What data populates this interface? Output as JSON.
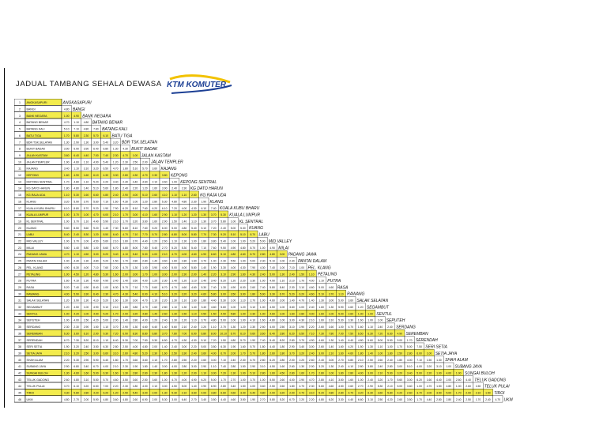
{
  "title": "JADUAL TAMBANG SEHALA DEWASA",
  "logo_text": "KTM KOMUTER",
  "colors": {
    "highlight": "#f3ec4d",
    "plain": "#ffffff",
    "logo_blue": "#1c3f94",
    "logo_yellow": "#f2c200",
    "border": "#000000"
  },
  "stations": [
    {
      "no": "1",
      "name": "ANGKASAPURI",
      "hl": true
    },
    {
      "no": "2",
      "name": "BANGI",
      "hl": false
    },
    {
      "no": "3",
      "name": "BANK NEGARA",
      "hl": true
    },
    {
      "no": "4",
      "name": "BATANG BENAR",
      "hl": false
    },
    {
      "no": "5",
      "name": "BATANG KALI",
      "hl": false
    },
    {
      "no": "6",
      "name": "BATU TIGA",
      "hl": true
    },
    {
      "no": "7",
      "name": "BDR TSK.SELATAN",
      "hl": false
    },
    {
      "no": "8",
      "name": "BUKIT BADAK",
      "hl": false
    },
    {
      "no": "9",
      "name": "JALAN KASTAM",
      "hl": true
    },
    {
      "no": "10",
      "name": "JALAN TEMPLER",
      "hl": false
    },
    {
      "no": "11",
      "name": "KAJANG",
      "hl": false
    },
    {
      "no": "12",
      "name": "KEPONG",
      "hl": true
    },
    {
      "no": "13",
      "name": "KEPONG SENTRAL",
      "hl": false
    },
    {
      "no": "14",
      "name": "KG DATO HARUN",
      "hl": false
    },
    {
      "no": "15",
      "name": "KG.RAJA UDA",
      "hl": true
    },
    {
      "no": "16",
      "name": "KLANG",
      "hl": false
    },
    {
      "no": "17",
      "name": "KUALA KUBU BHARU",
      "hl": false
    },
    {
      "no": "18",
      "name": "KUALA LUMPUR",
      "hl": true
    },
    {
      "no": "19",
      "name": "KL SENTRAL",
      "hl": false
    },
    {
      "no": "20",
      "name": "KUANG",
      "hl": false
    },
    {
      "no": "21",
      "name": "LABU",
      "hl": true
    },
    {
      "no": "22",
      "name": "MID VALLEY",
      "hl": false
    },
    {
      "no": "23",
      "name": "MILAI",
      "hl": false
    },
    {
      "no": "24",
      "name": "PADANG JAWA",
      "hl": true
    },
    {
      "no": "25",
      "name": "PANTAI DALAM",
      "hl": false
    },
    {
      "no": "26",
      "name": "PEL. KLANG",
      "hl": false
    },
    {
      "no": "27",
      "name": "PETALING",
      "hl": true
    },
    {
      "no": "28",
      "name": "PUTRA",
      "hl": false
    },
    {
      "no": "29",
      "name": "RASA",
      "hl": false
    },
    {
      "no": "30",
      "name": "RAWANG",
      "hl": true
    },
    {
      "no": "31",
      "name": "SALAK SELATAN",
      "hl": false
    },
    {
      "no": "32",
      "name": "SEGAMBUT",
      "hl": false
    },
    {
      "no": "33",
      "name": "SENTUL",
      "hl": true
    },
    {
      "no": "34",
      "name": "SEPUTEH",
      "hl": false
    },
    {
      "no": "35",
      "name": "SERDANG",
      "hl": false
    },
    {
      "no": "36",
      "name": "SEREMBAN",
      "hl": true
    },
    {
      "no": "37",
      "name": "SERENDAH",
      "hl": false
    },
    {
      "no": "38",
      "name": "SERI SETIA",
      "hl": false
    },
    {
      "no": "39",
      "name": "SETIA JAYA",
      "hl": true
    },
    {
      "no": "40",
      "name": "SHAH ALAM",
      "hl": false
    },
    {
      "no": "41",
      "name": "SUBANG JAYA",
      "hl": false
    },
    {
      "no": "42",
      "name": "SUNGAI BULOH",
      "hl": true
    },
    {
      "no": "43",
      "name": "TELUK GADONG",
      "hl": false
    },
    {
      "no": "44",
      "name": "TELUK PULAI",
      "hl": false
    },
    {
      "no": "45",
      "name": "TIROI",
      "hl": true
    },
    {
      "no": "46",
      "name": "UKM",
      "hl": false
    }
  ],
  "fare_rows": [
    [],
    [
      "4.80"
    ],
    [
      "1.00",
      "4.90"
    ],
    [
      "4.70",
      "1.10",
      "4.80"
    ],
    [
      "5.10",
      "7.10",
      "4.80",
      "7.80"
    ],
    [
      "1.70",
      "5.80",
      "2.30",
      "5.70",
      "6.10"
    ],
    [
      "1.30",
      "2.90",
      "1.30",
      "3.90",
      "5.40",
      "3.20"
    ],
    [
      "3.90",
      "5.90",
      "3.90",
      "6.40",
      "6.80",
      "1.30",
      "4.30"
    ],
    [
      "3.60",
      "6.40",
      "4.40",
      "7.00",
      "7.40",
      "2.30",
      "4.70",
      "1.00"
    ],
    [
      "1.90",
      "4.60",
      "1.10",
      "4.90",
      "5.40",
      "1.20",
      "2.30",
      "2.50",
      "2.00"
    ],
    [
      "3.40",
      "1.10",
      "3.10",
      "3.20",
      "6.50",
      "4.70",
      "1.80",
      "5.10",
      "5.70",
      "3.60"
    ],
    [
      "1.60",
      "4.90",
      "1.60",
      "6.10",
      "4.30",
      "3.30",
      "2.80",
      "4.30",
      "4.70",
      "2.30",
      "3.80"
    ],
    [
      "1.70",
      "4.80",
      "1.10",
      "5.20",
      "4.20",
      "3.40",
      "2.40",
      "4.40",
      "4.60",
      "2.10",
      "3.60",
      "1.00"
    ],
    [
      "1.80",
      "4.80",
      "1.40",
      "5.10",
      "5.60",
      "1.80",
      "2.40",
      "2.20",
      "1.20",
      "1.60",
      "3.90",
      "2.40",
      "2.30"
    ],
    [
      "1.10",
      "5.30",
      "1.60",
      "6.60",
      "4.80",
      "2.40",
      "2.90",
      "4.00",
      "5.10",
      "2.60",
      "4.10",
      "1.10",
      "1.10",
      "2.60"
    ],
    [
      "3.20",
      "5.90",
      "3.70",
      "5.60",
      "7.10",
      "1.60",
      "4.30",
      "1.00",
      "1.20",
      "2.80",
      "5.30",
      "4.80",
      "4.80",
      "2.30",
      "1.90"
    ],
    [
      "6.10",
      "8.80",
      "5.70",
      "9.20",
      "1.90",
      "7.90",
      "6.20",
      "8.10",
      "7.60",
      "6.20",
      "6.10",
      "7.20",
      "4.00",
      "4.30",
      "6.10",
      "7.40"
    ],
    [
      "1.00",
      "3.70",
      "1.00",
      "4.70",
      "6.00",
      "2.10",
      "1.70",
      "3.00",
      "4.10",
      "1.60",
      "2.90",
      "1.10",
      "1.20",
      "1.20",
      "1.30",
      "3.70",
      "5.30"
    ],
    [
      "1.00",
      "3.70",
      "1.10",
      "4.40",
      "5.90",
      "2.10",
      "1.70",
      "3.20",
      "3.60",
      "1.60",
      "2.90",
      "1.50",
      "1.40",
      "1.10",
      "1.30",
      "3.70",
      "5.80",
      "1.00"
    ],
    [
      "5.60",
      "8.50",
      "5.60",
      "9.20",
      "1.40",
      "7.30",
      "5.60",
      "8.10",
      "7.60",
      "5.20",
      "6.00",
      "5.00",
      "4.80",
      "5.40",
      "5.10",
      "7.20",
      "2.40",
      "5.00",
      "5.30"
    ],
    [
      "5.40",
      "2.40",
      "5.30",
      "1.20",
      "8.50",
      "6.40",
      "4.70",
      "7.10",
      "7.70",
      "5.70",
      "2.80",
      "6.80",
      "5.00",
      "5.80",
      "7.70",
      "7.30",
      "9.20",
      "5.10",
      "5.10",
      "8.70"
    ],
    [
      "1.00",
      "3.70",
      "1.00",
      "4.50",
      "5.60",
      "2.10",
      "1.60",
      "3.70",
      "4.40",
      "1.20",
      "2.60",
      "1.10",
      "1.30",
      "1.00",
      "1.80",
      "3.80",
      "5.40",
      "1.00",
      "1.00",
      "5.20",
      "5.00"
    ],
    [
      "5.80",
      "1.40",
      "5.80",
      "1.00",
      "8.60",
      "6.70",
      "4.80",
      "8.00",
      "7.80",
      "5.40",
      "2.70",
      "5.20",
      "5.30",
      "5.40",
      "7.10",
      "7.60",
      "9.50",
      "4.90",
      "4.80",
      "8.70",
      "1.00",
      "4.90"
    ],
    [
      "4.70",
      "1.10",
      "4.50",
      "3.00",
      "8.20",
      "3.40",
      "4.10",
      "5.40",
      "5.30",
      "4.00",
      "2.10",
      "4.70",
      "4.00",
      "4.60",
      "4.90",
      "6.60",
      "5.10",
      "4.80",
      "4.60",
      "8.70",
      "2.80",
      "4.80",
      "3.00"
    ],
    [
      "1.00",
      "4.40",
      "1.30",
      "4.80",
      "5.20",
      "1.50",
      "1.70",
      "2.80",
      "2.80",
      "1.40",
      "3.60",
      "1.60",
      "1.80",
      "1.60",
      "3.70",
      "1.00",
      "2.30",
      "5.50",
      "1.00",
      "5.00",
      "2.30",
      "5.10",
      "1.00",
      "2.40"
    ],
    [
      "4.90",
      "6.30",
      "4.00",
      "7.10",
      "7.60",
      "2.30",
      "4.70",
      "1.30",
      "1.00",
      "3.90",
      "4.00",
      "5.00",
      "4.00",
      "5.80",
      "1.40",
      "1.90",
      "3.30",
      "4.00",
      "4.30",
      "7.90",
      "4.30",
      "7.40",
      "1.00",
      "7.10",
      "1.00"
    ],
    [
      "1.00",
      "4.50",
      "1.20",
      "4.80",
      "5.30",
      "1.60",
      "2.00",
      "3.00",
      "1.70",
      "1.00",
      "3.00",
      "2.00",
      "2.30",
      "2.00",
      "1.40",
      "2.20",
      "3.10",
      "2.90",
      "1.60",
      "4.30",
      "2.40",
      "5.00",
      "1.30",
      "2.40",
      "1.50",
      "1.10"
    ],
    [
      "1.60",
      "4.10",
      "1.30",
      "4.60",
      "4.90",
      "2.40",
      "1.40",
      "3.50",
      "4.00",
      "1.20",
      "2.30",
      "1.40",
      "1.20",
      "1.10",
      "2.40",
      "3.40",
      "5.20",
      "1.20",
      "2.20",
      "3.30",
      "1.00",
      "4.90",
      "1.10",
      "2.10",
      "1.70",
      "4.00",
      "1.10"
    ],
    [
      "5.20",
      "7.40",
      "4.90",
      "8.40",
      "1.00",
      "6.30",
      "5.70",
      "7.10",
      "7.70",
      "5.60",
      "6.70",
      "4.70",
      "4.60",
      "4.60",
      "5.30",
      "7.40",
      "1.30",
      "4.90",
      "6.00",
      "2.60",
      "7.40",
      "5.80",
      "8.40",
      "2.30",
      "3.10",
      "4.60",
      "5.00",
      "4.60"
    ],
    [
      "4.00",
      "5.90",
      "3.30",
      "6.40",
      "2.30",
      "4.70",
      "4.30",
      "5.40",
      "6.00",
      "4.10",
      "5.10",
      "3.20",
      "3.20",
      "3.20",
      "4.60",
      "5.80",
      "3.00",
      "3.50",
      "3.90",
      "1.80",
      "5.90",
      "3.30",
      "6.70",
      "5.20",
      "6.20",
      "4.60",
      "5.10",
      "3.70",
      "1.10"
    ],
    [
      "1.20",
      "3.90",
      "1.30",
      "4.10",
      "5.20",
      "1.60",
      "1.30",
      "3.00",
      "4.70",
      "1.10",
      "2.20",
      "1.30",
      "1.10",
      "1.60",
      "1.80",
      "4.40",
      "5.30",
      "1.00",
      "1.10",
      "2.70",
      "1.00",
      "4.60",
      "2.00",
      "1.40",
      "4.70",
      "1.40",
      "1.30",
      "3.00",
      "5.00",
      "3.60"
    ],
    [
      "1.20",
      "4.50",
      "1.00",
      "4.90",
      "5.10",
      "2.10",
      "1.80",
      "3.80",
      "4.70",
      "1.60",
      "2.80",
      "1.10",
      "1.30",
      "1.40",
      "3.40",
      "4.60",
      "5.60",
      "1.00",
      "1.20",
      "3.10",
      "1.00",
      "4.50",
      "1.00",
      "3.60",
      "4.00",
      "2.40",
      "1.60",
      "1.30",
      "5.90",
      "4.60",
      "1.20"
    ],
    [
      "1.00",
      "4.20",
      "1.00",
      "4.90",
      "5.20",
      "1.70",
      "2.00",
      "3.20",
      "4.80",
      "1.40",
      "2.60",
      "1.30",
      "1.50",
      "1.10",
      "4.50",
      "1.50",
      "4.90",
      "5.80",
      "1.00",
      "2.30",
      "1.00",
      "4.60",
      "1.00",
      "1.60",
      "2.80",
      "4.00",
      "1.60",
      "1.00",
      "5.00",
      "2.60",
      "1.00",
      "1.00"
    ],
    [
      "1.00",
      "4.00",
      "1.50",
      "4.20",
      "5.00",
      "2.00",
      "1.40",
      "2.80",
      "4.00",
      "1.20",
      "2.40",
      "1.30",
      "1.20",
      "1.10",
      "3.70",
      "4.80",
      "5.00",
      "1.00",
      "1.00",
      "4.10",
      "1.60",
      "4.80",
      "1.00",
      "3.00",
      "4.30",
      "2.10",
      "1.60",
      "3.10",
      "5.30",
      "3.30",
      "1.60",
      "1.00",
      "1.00"
    ],
    [
      "2.30",
      "2.30",
      "2.90",
      "1.50",
      "1.10",
      "3.70",
      "2.90",
      "1.30",
      "4.60",
      "6.40",
      "1.40",
      "5.60",
      "2.10",
      "2.40",
      "2.20",
      "1.10",
      "2.70",
      "1.30",
      "1.20",
      "2.30",
      "2.50",
      "4.00",
      "2.50",
      "3.10",
      "2.90",
      "2.20",
      "2.60",
      "1.60",
      "1.00",
      "4.70",
      "1.60",
      "1.10",
      "2.40",
      "2.40"
    ],
    [
      "6.30",
      "3.60",
      "6.10",
      "2.90",
      "9.30",
      "7.20",
      "6.90",
      "8.30",
      "8.80",
      "6.80",
      "3.70",
      "7.80",
      "7.00",
      "6.90",
      "6.80",
      "8.00",
      "10.10",
      "6.70",
      "6.10",
      "9.60",
      "3.60",
      "6.40",
      "2.80",
      "6.20",
      "6.50",
      "7.10",
      "7.30",
      "7.80",
      "7.00",
      "7.50",
      "6.50",
      "6.30",
      "7.20",
      "6.60",
      "4.90"
    ],
    [
      "6.70",
      "7.30",
      "5.20",
      "8.10",
      "1.10",
      "6.40",
      "5.30",
      "7.00",
      "7.50",
      "5.30",
      "6.50",
      "4.70",
      "4.30",
      "4.30",
      "5.10",
      "7.20",
      "1.50",
      "4.80",
      "5.70",
      "1.90",
      "7.40",
      "5.40",
      "8.20",
      "2.80",
      "3.70",
      "4.90",
      "4.60",
      "1.30",
      "1.40",
      "6.40",
      "4.80",
      "5.60",
      "5.00",
      "5.50",
      "9.00",
      "1.70"
    ],
    [
      "1.90",
      "3.20",
      "2.40",
      "3.50",
      "6.30",
      "2.80",
      "2.50",
      "4.00",
      "4.80",
      "2.00",
      "1.40",
      "2.40",
      "3.00",
      "2.20",
      "5.00",
      "3.50",
      "6.30",
      "1.90",
      "1.60",
      "5.70",
      "1.80",
      "4.40",
      "1.80",
      "2.90",
      "3.40",
      "3.00",
      "2.60",
      "1.40",
      "1.60",
      "4.20",
      "1.50",
      "1.30",
      "1.10",
      "1.00",
      "1.70",
      "5.00",
      "7.50"
    ],
    [
      "2.10",
      "3.20",
      "2.50",
      "3.00",
      "6.60",
      "3.10",
      "2.60",
      "4.80",
      "5.20",
      "2.30",
      "1.60",
      "2.50",
      "3.30",
      "2.40",
      "3.60",
      "4.00",
      "6.70",
      "2.00",
      "1.70",
      "5.70",
      "1.80",
      "2.60",
      "1.80",
      "3.70",
      "3.20",
      "2.40",
      "3.00",
      "2.10",
      "1.60",
      "4.60",
      "1.80",
      "1.40",
      "1.00",
      "1.80",
      "2.50",
      "2.80",
      "6.00",
      "1.00"
    ],
    [
      "2.20",
      "5.30",
      "2.90",
      "5.90",
      "6.40",
      "1.80",
      "1.70",
      "3.60",
      "3.60",
      "2.10",
      "1.70",
      "2.80",
      "2.50",
      "2.20",
      "2.60",
      "3.00",
      "7.10",
      "2.40",
      "2.30",
      "6.70",
      "2.80",
      "6.20",
      "2.80",
      "2.00",
      "2.20",
      "2.60",
      "2.40",
      "3.00",
      "2.70",
      "6.80",
      "2.10",
      "2.50",
      "2.60",
      "2.40",
      "1.80",
      "4.00",
      "7.10",
      "1.50",
      "1.30"
    ],
    [
      "2.90",
      "6.80",
      "3.40",
      "6.70",
      "4.00",
      "2.10",
      "2.30",
      "1.90",
      "1.80",
      "1.40",
      "3.00",
      "4.00",
      "2.80",
      "3.00",
      "2.90",
      "1.10",
      "7.40",
      "2.80",
      "1.50",
      "2.90",
      "3.10",
      "4.50",
      "1.60",
      "2.60",
      "1.30",
      "2.00",
      "3.20",
      "1.30",
      "2.40",
      "4.10",
      "2.80",
      "3.80",
      "2.40",
      "2.80",
      "3.00",
      "5.10",
      "4.00",
      "3.20",
      "3.10",
      "1.00"
    ],
    [
      "1.30",
      "4.60",
      "1.60",
      "5.00",
      "6.30",
      "1.60",
      "1.30",
      "2.80",
      "2.60",
      "2.30",
      "1.80",
      "1.30",
      "1.20",
      "2.00",
      "1.10",
      "3.00",
      "7.20",
      "1.30",
      "1.00",
      "5.10",
      "2.80",
      "1.60",
      "4.50",
      "2.80",
      "1.60",
      "1.70",
      "2.80",
      "1.00",
      "1.80",
      "2.80",
      "4.00",
      "3.00",
      "2.10",
      "5.90",
      "3.20",
      "3.40",
      "5.00",
      "2.20",
      "1.00",
      "4.00",
      "1.00"
    ],
    [
      "2.60",
      "4.80",
      "3.10",
      "5.50",
      "5.70",
      "4.60",
      "3.50",
      "3.60",
      "2.50",
      "3.60",
      "1.00",
      "4.70",
      "4.00",
      "4.90",
      "6.20",
      "5.00",
      "1.70",
      "2.70",
      "1.00",
      "3.70",
      "1.00",
      "5.50",
      "2.60",
      "4.00",
      "2.90",
      "4.70",
      "2.80",
      "4.10",
      "3.50",
      "1.60",
      "1.00",
      "2.40",
      "3.20",
      "1.70",
      "5.60",
      "3.00",
      "6.20",
      "1.60",
      "4.40",
      "2.00",
      "2.60",
      "4.40"
    ],
    [
      "3.70",
      "6.10",
      "3.20",
      "6.50",
      "7.00",
      "2.20",
      "2.30",
      "1.80",
      "4.00",
      "2.10",
      "3.00",
      "4.50",
      "5.00",
      "1.40",
      "2.90",
      "6.90",
      "2.80",
      "3.40",
      "1.50",
      "4.00",
      "3.60",
      "2.50",
      "2.60",
      "1.80",
      "4.70",
      "2.30",
      "5.60",
      "4.60",
      "4.50",
      "2.60",
      "2.70",
      "2.90",
      "5.30",
      "2.10",
      "5.00",
      "3.60",
      "1.00",
      "4.70",
      "1.50",
      "4.80",
      "1.00",
      "2.60",
      "1.50"
    ],
    [
      "4.30",
      "5.80",
      "2.80",
      "4.20",
      "6.20",
      "1.20",
      "2.90",
      "5.40",
      "3.00",
      "2.00",
      "1.30",
      "5.30",
      "2.10",
      "3.60",
      "4.00",
      "3.80",
      "6.60",
      "4.60",
      "3.40",
      "6.40",
      "4.80",
      "2.00",
      "3.20",
      "2.00",
      "4.70",
      "3.10",
      "5.20",
      "4.80",
      "2.80",
      "4.70",
      "3.20",
      "6.30",
      "3.60",
      "5.80",
      "4.20",
      "2.60",
      "3.70",
      "2.00",
      "3.50",
      "5.00",
      "1.70",
      "2.00",
      "2.10",
      "1.50"
    ],
    [
      "4.80",
      "2.70",
      "2.00",
      "5.90",
      "4.80",
      "3.60",
      "4.80",
      "2.60",
      "6.90",
      "2.00",
      "5.30",
      "3.00",
      "6.40",
      "2.70",
      "3.40",
      "3.50",
      "4.40",
      "4.60",
      "3.50",
      "1.90",
      "2.70",
      "5.80",
      "5.20",
      "6.70",
      "2.20",
      "2.20",
      "4.80",
      "6.20",
      "3.30",
      "4.40",
      "6.60",
      "3.10",
      "2.50",
      "4.20",
      "2.60",
      "3.50",
      "1.70",
      "4.40",
      "2.80",
      "2.80",
      "2.40",
      "2.50",
      "1.70",
      "2.40",
      "4.70"
    ],
    [
      "2.90",
      "1.80",
      "3.50",
      "1.60",
      "6.70",
      "3.90",
      "2.40",
      "4.70",
      "5.30",
      "3.40",
      "1.00",
      "3.60",
      "3.90",
      "3.30",
      "4.10",
      "4.40",
      "6.60",
      "2.80",
      "2.70",
      "6.50",
      "1.10",
      "3.60",
      "1.00",
      "4.30",
      "3.30",
      "3.70",
      "3.10",
      "2.80",
      "4.00",
      "5.80",
      "3.30",
      "2.90",
      "3.00",
      "2.40",
      "1.40",
      "2.30",
      "5.60",
      "1.40",
      "1.80",
      "3.10",
      "3.40",
      "4.80",
      "2.70",
      "3.30",
      "2.60",
      "3.30"
    ]
  ]
}
